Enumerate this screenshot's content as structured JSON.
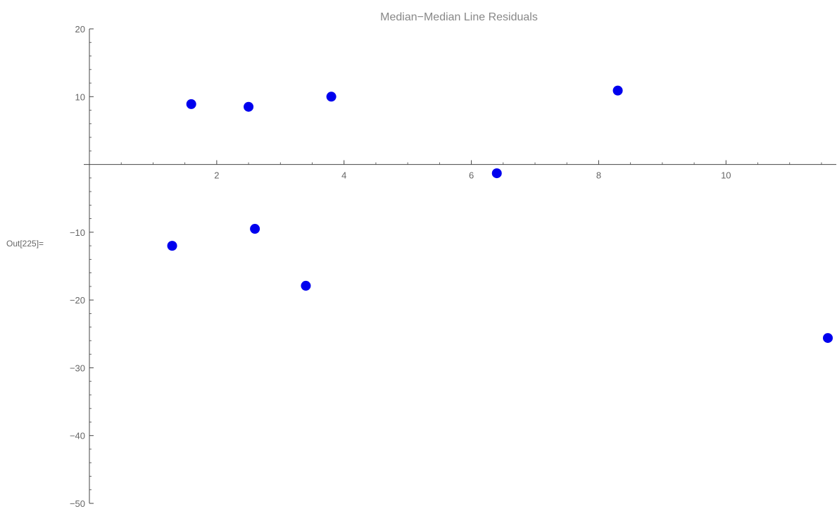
{
  "cell_label": "Out[225]=",
  "chart_data": {
    "type": "scatter",
    "title": "Median−Median Line Residuals",
    "xlabel": "",
    "ylabel": "",
    "xlim": [
      0,
      11.6
    ],
    "ylim": [
      -50,
      20
    ],
    "x_ticks": [
      2,
      4,
      6,
      8,
      10
    ],
    "y_ticks": [
      20,
      10,
      -10,
      -20,
      -30,
      -40,
      -50
    ],
    "x_tick_labels": [
      "2",
      "4",
      "6",
      "8",
      "10"
    ],
    "y_tick_labels": [
      "20",
      "10",
      "−10",
      "−20",
      "−30",
      "−40",
      "−50"
    ],
    "x_minor_step": 0.5,
    "y_minor_step": 2,
    "point_color": "#0000ee",
    "axis_color": "#444444",
    "grid": false,
    "points": [
      {
        "x": 1.3,
        "y": -12.0
      },
      {
        "x": 1.6,
        "y": 8.9
      },
      {
        "x": 2.5,
        "y": 8.5
      },
      {
        "x": 2.6,
        "y": -9.5
      },
      {
        "x": 3.4,
        "y": -17.9
      },
      {
        "x": 3.8,
        "y": 10.0
      },
      {
        "x": 6.4,
        "y": -1.3
      },
      {
        "x": 8.3,
        "y": 10.9
      },
      {
        "x": 11.6,
        "y": -25.6
      }
    ]
  }
}
